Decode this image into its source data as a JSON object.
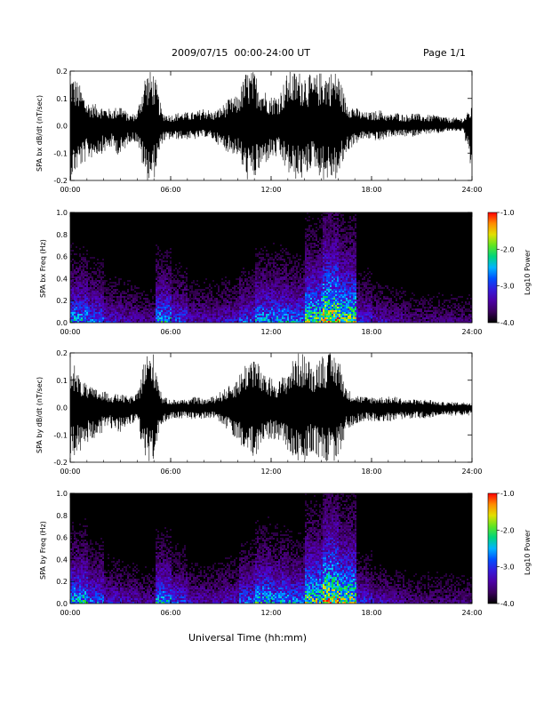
{
  "header": {
    "title": "2009/07/15  00:00-24:00 UT",
    "page": "Page 1/1"
  },
  "chart_data": [
    {
      "type": "line",
      "title": "",
      "xlabel": "",
      "ylabel": "SPA bx dB/dt (nT/sec)",
      "xlim": [
        0,
        24
      ],
      "ylim": [
        -0.2,
        0.2
      ],
      "xticks": [
        "00:00",
        "06:00",
        "12:00",
        "18:00",
        "24:00"
      ],
      "yticks": [
        "-0.2",
        "-0.1",
        "0.0",
        "0.1",
        "0.2"
      ],
      "series": [
        {
          "x_hours": [
            0.0,
            0.5,
            1.0,
            1.5,
            2.0,
            2.5,
            3.0,
            3.5,
            4.0,
            4.5,
            5.0,
            5.5,
            6.0,
            6.5,
            7.0,
            7.5,
            8.0,
            8.5,
            9.0,
            9.5,
            10.0,
            10.5,
            11.0,
            11.5,
            12.0,
            12.5,
            13.0,
            13.5,
            14.0,
            14.5,
            15.0,
            15.5,
            16.0,
            16.5,
            17.0,
            17.5,
            18.0,
            18.5,
            19.0,
            19.5,
            20.0,
            20.5,
            21.0,
            21.5,
            22.0,
            22.5,
            23.0,
            23.5,
            24.0
          ],
          "envelope_max": [
            0.2,
            0.16,
            0.09,
            0.08,
            0.07,
            0.06,
            0.08,
            0.04,
            0.05,
            0.2,
            0.2,
            0.05,
            0.04,
            0.05,
            0.05,
            0.05,
            0.07,
            0.05,
            0.07,
            0.1,
            0.11,
            0.2,
            0.2,
            0.14,
            0.11,
            0.12,
            0.2,
            0.2,
            0.2,
            0.18,
            0.2,
            0.2,
            0.2,
            0.09,
            0.07,
            0.05,
            0.05,
            0.06,
            0.04,
            0.05,
            0.04,
            0.05,
            0.04,
            0.04,
            0.04,
            0.03,
            0.03,
            0.03,
            0.07
          ],
          "envelope_min": [
            -0.2,
            -0.16,
            -0.13,
            -0.11,
            -0.1,
            -0.08,
            -0.12,
            -0.06,
            -0.06,
            -0.2,
            -0.2,
            -0.06,
            -0.05,
            -0.05,
            -0.05,
            -0.05,
            -0.04,
            -0.05,
            -0.08,
            -0.1,
            -0.11,
            -0.2,
            -0.2,
            -0.15,
            -0.12,
            -0.12,
            -0.18,
            -0.2,
            -0.2,
            -0.14,
            -0.2,
            -0.2,
            -0.2,
            -0.1,
            -0.07,
            -0.05,
            -0.05,
            -0.06,
            -0.04,
            -0.04,
            -0.04,
            -0.04,
            -0.03,
            -0.03,
            -0.03,
            -0.02,
            -0.02,
            -0.02,
            -0.2
          ]
        }
      ]
    },
    {
      "type": "heatmap",
      "title": "",
      "xlabel": "",
      "ylabel": "SPA bx Freq (Hz)",
      "xlim": [
        0,
        24
      ],
      "ylim": [
        0.0,
        1.0
      ],
      "xticks": [
        "00:00",
        "06:00",
        "12:00",
        "18:00",
        "24:00"
      ],
      "yticks": [
        "0.0",
        "0.2",
        "0.4",
        "0.6",
        "0.8",
        "1.0"
      ],
      "colorbar": {
        "label": "Log10 Power",
        "range": [
          -4.0,
          -1.0
        ],
        "ticks": [
          "-4.0",
          "-3.0",
          "-2.0",
          "-1.0"
        ]
      },
      "activity_by_hour": [
        0.6,
        0.5,
        0.35,
        0.3,
        0.25,
        0.6,
        0.45,
        0.3,
        0.3,
        0.35,
        0.45,
        0.6,
        0.6,
        0.55,
        0.8,
        0.95,
        0.85,
        0.4,
        0.3,
        0.25,
        0.2,
        0.2,
        0.2,
        0.2
      ]
    },
    {
      "type": "line",
      "title": "",
      "xlabel": "",
      "ylabel": "SPA by dB/dt (nT/sec)",
      "xlim": [
        0,
        24
      ],
      "ylim": [
        -0.2,
        0.2
      ],
      "xticks": [
        "00:00",
        "06:00",
        "12:00",
        "18:00",
        "24:00"
      ],
      "yticks": [
        "-0.2",
        "-0.1",
        "0.0",
        "0.1",
        "0.2"
      ],
      "series": [
        {
          "x_hours": [
            0.0,
            0.5,
            1.0,
            1.5,
            2.0,
            2.5,
            3.0,
            3.5,
            4.0,
            4.5,
            5.0,
            5.5,
            6.0,
            6.5,
            7.0,
            7.5,
            8.0,
            8.5,
            9.0,
            9.5,
            10.0,
            10.5,
            11.0,
            11.5,
            12.0,
            12.5,
            13.0,
            13.5,
            14.0,
            14.5,
            15.0,
            15.5,
            16.0,
            16.5,
            17.0,
            17.5,
            18.0,
            18.5,
            19.0,
            19.5,
            20.0,
            20.5,
            21.0,
            21.5,
            22.0,
            22.5,
            23.0,
            23.5,
            24.0
          ],
          "envelope_max": [
            0.2,
            0.12,
            0.08,
            0.07,
            0.06,
            0.05,
            0.05,
            0.04,
            0.05,
            0.2,
            0.2,
            0.04,
            0.03,
            0.03,
            0.03,
            0.04,
            0.03,
            0.04,
            0.06,
            0.08,
            0.11,
            0.17,
            0.2,
            0.12,
            0.11,
            0.1,
            0.14,
            0.2,
            0.2,
            0.15,
            0.2,
            0.2,
            0.2,
            0.07,
            0.05,
            0.04,
            0.04,
            0.04,
            0.04,
            0.04,
            0.03,
            0.03,
            0.03,
            0.03,
            0.02,
            0.02,
            0.02,
            0.02,
            0.02
          ],
          "envelope_min": [
            -0.2,
            -0.17,
            -0.13,
            -0.11,
            -0.09,
            -0.08,
            -0.09,
            -0.07,
            -0.06,
            -0.2,
            -0.2,
            -0.06,
            -0.04,
            -0.04,
            -0.04,
            -0.05,
            -0.04,
            -0.04,
            -0.06,
            -0.09,
            -0.12,
            -0.16,
            -0.2,
            -0.14,
            -0.12,
            -0.12,
            -0.16,
            -0.2,
            -0.2,
            -0.16,
            -0.2,
            -0.2,
            -0.2,
            -0.09,
            -0.06,
            -0.05,
            -0.05,
            -0.05,
            -0.05,
            -0.05,
            -0.04,
            -0.04,
            -0.04,
            -0.04,
            -0.03,
            -0.03,
            -0.03,
            -0.03,
            -0.03
          ]
        }
      ]
    },
    {
      "type": "heatmap",
      "title": "",
      "xlabel": "Universal Time (hh:mm)",
      "ylabel": "SPA by Freq (Hz)",
      "xlim": [
        0,
        24
      ],
      "ylim": [
        0.0,
        1.0
      ],
      "xticks": [
        "00:00",
        "06:00",
        "12:00",
        "18:00",
        "24:00"
      ],
      "yticks": [
        "0.0",
        "0.2",
        "0.4",
        "0.6",
        "0.8",
        "1.0"
      ],
      "colorbar": {
        "label": "Log10 Power",
        "range": [
          -4.0,
          -1.0
        ],
        "ticks": [
          "-4.0",
          "-3.0",
          "-2.0",
          "-1.0"
        ]
      },
      "activity_by_hour": [
        0.65,
        0.5,
        0.35,
        0.3,
        0.25,
        0.6,
        0.45,
        0.3,
        0.3,
        0.35,
        0.5,
        0.65,
        0.6,
        0.55,
        0.8,
        0.95,
        0.85,
        0.4,
        0.3,
        0.25,
        0.2,
        0.2,
        0.2,
        0.2
      ]
    }
  ]
}
